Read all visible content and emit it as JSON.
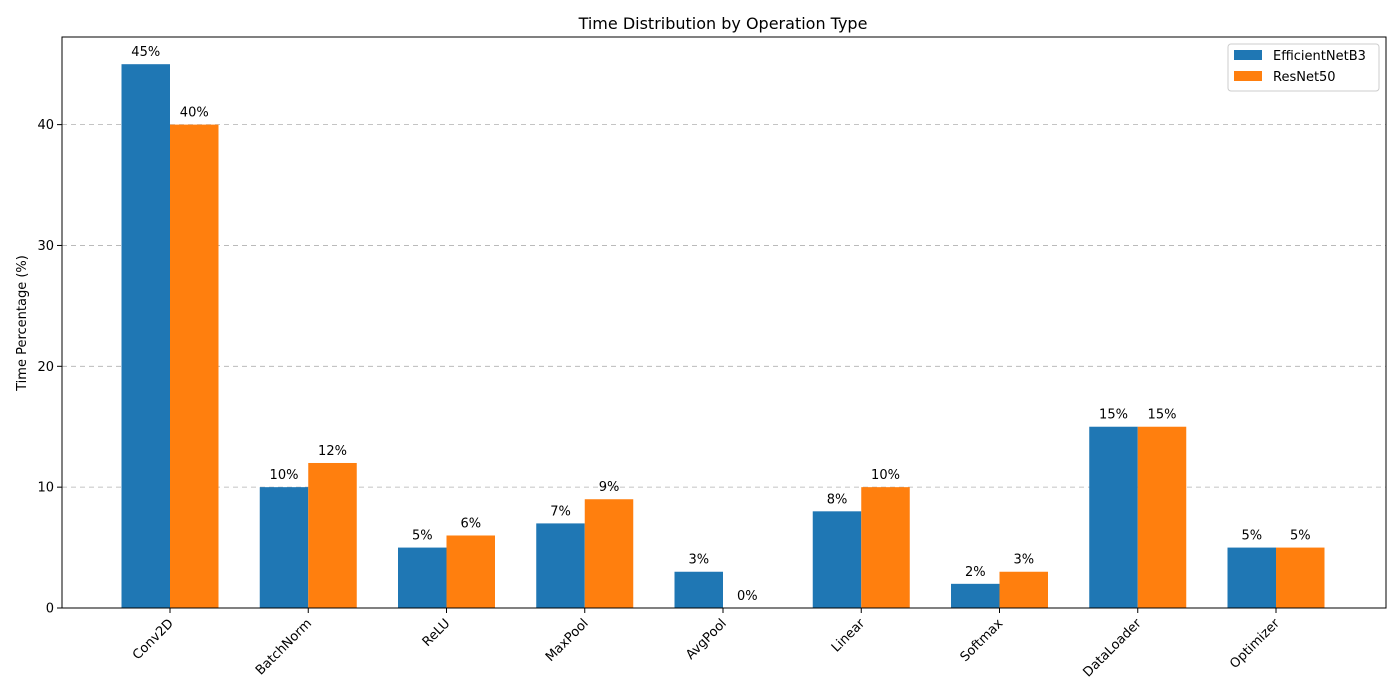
{
  "chart_data": {
    "type": "bar",
    "title": "Time Distribution by Operation Type",
    "xlabel": "",
    "ylabel": "Time Percentage (%)",
    "categories": [
      "Conv2D",
      "BatchNorm",
      "ReLU",
      "MaxPool",
      "AvgPool",
      "Linear",
      "Softmax",
      "DataLoader",
      "Optimizer"
    ],
    "series": [
      {
        "name": "EfficientNetB3",
        "color": "#1f77b4",
        "values": [
          45,
          10,
          5,
          7,
          3,
          8,
          2,
          15,
          5
        ],
        "labels": [
          "45%",
          "10%",
          "5%",
          "7%",
          "3%",
          "8%",
          "2%",
          "15%",
          "5%"
        ]
      },
      {
        "name": "ResNet50",
        "color": "#ff7f0e",
        "values": [
          40,
          12,
          6,
          9,
          0,
          10,
          3,
          15,
          5
        ],
        "labels": [
          "40%",
          "12%",
          "6%",
          "9%",
          "0%",
          "10%",
          "3%",
          "15%",
          "5%"
        ]
      }
    ],
    "yticks": [
      0,
      10,
      20,
      30,
      40
    ],
    "ylim": [
      0,
      47.25
    ],
    "grid": "y-dashed",
    "legend_position": "top-right"
  }
}
